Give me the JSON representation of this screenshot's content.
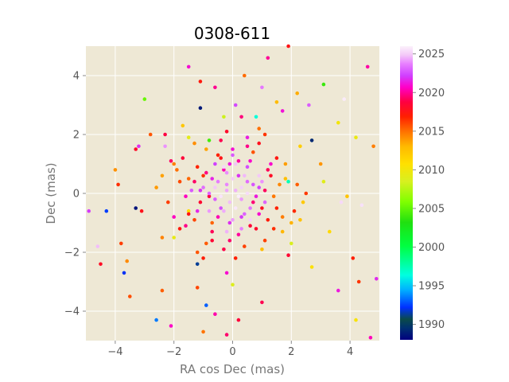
{
  "chart_data": {
    "type": "scatter",
    "title": "0308-611",
    "xlabel": "RA cos Dec (mas)",
    "ylabel": "Dec (mas)",
    "xlim": [
      -5,
      5
    ],
    "ylim": [
      -5,
      5
    ],
    "xticks": [
      -4,
      -2,
      0,
      2,
      4
    ],
    "yticks": [
      -4,
      -2,
      0,
      2,
      4
    ],
    "grid": true,
    "colorbar": {
      "label": "",
      "range": [
        1988,
        2026
      ],
      "ticks": [
        1990,
        1995,
        2000,
        2005,
        2010,
        2015,
        2020,
        2025
      ],
      "colormap": "gist_ncar"
    },
    "points": [
      [
        0.1,
        0.1,
        2024.5
      ],
      [
        -0.2,
        0.3,
        2023.8
      ],
      [
        0.3,
        -0.2,
        2024.1
      ],
      [
        -0.4,
        -0.5,
        2022.6
      ],
      [
        0.5,
        0.4,
        2023.2
      ],
      [
        0.2,
        0.6,
        2021.9
      ],
      [
        -0.6,
        0.2,
        2024.9
      ],
      [
        0.7,
        -0.3,
        2019.5
      ],
      [
        -0.3,
        0.8,
        2020.4
      ],
      [
        0.4,
        -0.7,
        2023.0
      ],
      [
        -0.8,
        -0.1,
        2018.7
      ],
      [
        0.9,
        0.2,
        2022.3
      ],
      [
        0.0,
        -0.9,
        2024.2
      ],
      [
        -0.1,
        1.0,
        2021.2
      ],
      [
        1.0,
        -0.5,
        2017.9
      ],
      [
        -1.0,
        0.6,
        2016.5
      ],
      [
        0.6,
        1.1,
        2020.8
      ],
      [
        -0.7,
        -1.0,
        2015.3
      ],
      [
        1.2,
        0.8,
        2019.1
      ],
      [
        -1.2,
        -0.6,
        2021.6
      ],
      [
        0.8,
        -1.2,
        2018.2
      ],
      [
        -0.5,
        1.3,
        2016.9
      ],
      [
        1.4,
        -0.1,
        2014.8
      ],
      [
        -1.4,
        0.1,
        2022.8
      ],
      [
        0.2,
        -1.4,
        2020.1
      ],
      [
        -0.9,
        1.5,
        2013.6
      ],
      [
        1.5,
        1.2,
        2017.4
      ],
      [
        -1.6,
        -1.1,
        2019.8
      ],
      [
        1.1,
        -1.6,
        2016.1
      ],
      [
        -1.3,
        1.7,
        2014.2
      ],
      [
        1.8,
        0.5,
        2012.7
      ],
      [
        -1.8,
        0.4,
        2015.9
      ],
      [
        0.5,
        1.9,
        2021.4
      ],
      [
        -0.3,
        -1.9,
        2018.9
      ],
      [
        1.7,
        -1.3,
        2013.1
      ],
      [
        -2.0,
        -0.8,
        2020.6
      ],
      [
        2.1,
        -0.6,
        2016.7
      ],
      [
        -2.1,
        1.1,
        2019.3
      ],
      [
        0.9,
        2.2,
        2015.0
      ],
      [
        -1.0,
        -2.2,
        2017.1
      ],
      [
        2.3,
        1.6,
        2011.8
      ],
      [
        -2.4,
        -1.5,
        2014.5
      ],
      [
        1.9,
        -2.1,
        2018.4
      ],
      [
        -1.7,
        2.3,
        2012.2
      ],
      [
        2.5,
        0.0,
        2016.3
      ],
      [
        -2.6,
        0.2,
        2013.9
      ],
      [
        0.3,
        2.6,
        2019.6
      ],
      [
        -0.2,
        -2.7,
        2020.9
      ],
      [
        2.7,
        -2.5,
        2010.6
      ],
      [
        -2.8,
        2.0,
        2015.6
      ],
      [
        3.0,
        1.0,
        2014.0
      ],
      [
        -3.1,
        -0.6,
        2017.7
      ],
      [
        1.5,
        3.1,
        2012.9
      ],
      [
        -1.2,
        -3.2,
        2016.0
      ],
      [
        3.3,
        -1.3,
        2011.2
      ],
      [
        -3.3,
        1.5,
        2018.1
      ],
      [
        2.2,
        3.4,
        2013.4
      ],
      [
        -2.4,
        -3.3,
        2015.4
      ],
      [
        3.6,
        2.4,
        2010.1
      ],
      [
        -3.6,
        -2.3,
        2014.3
      ],
      [
        1.0,
        -3.7,
        2019.0
      ],
      [
        -1.1,
        3.8,
        2017.3
      ],
      [
        3.9,
        -0.1,
        2012.4
      ],
      [
        -3.9,
        0.3,
        2016.6
      ],
      [
        0.4,
        4.0,
        2015.1
      ],
      [
        -0.6,
        -4.1,
        2020.3
      ],
      [
        4.2,
        1.9,
        2009.6
      ],
      [
        -4.3,
        -0.6,
        1992.4
      ],
      [
        2.7,
        1.8,
        1989.3
      ],
      [
        -1.1,
        2.9,
        1988.8
      ],
      [
        -3.3,
        -0.5,
        1988.6
      ],
      [
        -3.7,
        -2.7,
        1992.1
      ],
      [
        -2.6,
        -4.3,
        1993.5
      ],
      [
        -1.2,
        -2.4,
        1991.3
      ],
      [
        -0.9,
        -3.8,
        1993.0
      ],
      [
        -0.3,
        2.6,
        2008.2
      ],
      [
        3.1,
        3.7,
        2003.9
      ],
      [
        -3.0,
        3.2,
        2005.2
      ],
      [
        -1.5,
        1.9,
        2009.1
      ],
      [
        1.9,
        0.4,
        1997.3
      ],
      [
        2.0,
        -1.7,
        2008.6
      ],
      [
        -2.0,
        -1.5,
        2009.4
      ],
      [
        0.8,
        2.6,
        1996.5
      ],
      [
        -0.8,
        1.8,
        2004.2
      ],
      [
        4.2,
        -4.3,
        2010.4
      ],
      [
        3.1,
        0.4,
        2009.0
      ],
      [
        -1.5,
        -0.6,
        2011.0
      ],
      [
        0.0,
        -3.1,
        2008.8
      ],
      [
        2.4,
        -0.3,
        2012.1
      ],
      [
        -2.3,
        1.6,
        2024.0
      ],
      [
        3.7,
        -0.3,
        2025.3
      ],
      [
        -4.6,
        -1.8,
        2024.7
      ],
      [
        3.8,
        3.2,
        2025.8
      ],
      [
        4.4,
        -0.4,
        2025.5
      ],
      [
        4.9,
        -2.9,
        2021.7
      ],
      [
        -4.9,
        -0.6,
        2022.1
      ],
      [
        -4.5,
        -2.4,
        2018.0
      ],
      [
        -3.8,
        -1.7,
        2016.2
      ],
      [
        -3.5,
        -3.5,
        2015.8
      ],
      [
        4.7,
        -4.9,
        2020.5
      ],
      [
        4.6,
        4.3,
        2020.2
      ],
      [
        4.8,
        1.6,
        2014.6
      ],
      [
        4.3,
        -3.0,
        2016.4
      ],
      [
        -2.1,
        -4.5,
        2020.7
      ],
      [
        1.9,
        5.0,
        2017.6
      ],
      [
        1.2,
        4.6,
        2020.0
      ],
      [
        -1.5,
        4.3,
        2021.0
      ],
      [
        -0.2,
        -4.8,
        2019.4
      ],
      [
        0.2,
        -4.3,
        2018.6
      ],
      [
        -1.0,
        -4.7,
        2014.9
      ],
      [
        3.6,
        -3.3,
        2021.3
      ],
      [
        4.1,
        -2.2,
        2017.0
      ],
      [
        -3.2,
        1.6,
        2021.8
      ],
      [
        -2.3,
        2.0,
        2018.8
      ],
      [
        -4.0,
        0.8,
        2014.1
      ],
      [
        1.0,
        3.6,
        2023.5
      ],
      [
        0.1,
        3.0,
        2022.4
      ],
      [
        -0.6,
        3.6,
        2019.9
      ],
      [
        2.6,
        3.0,
        2022.9
      ],
      [
        1.7,
        2.8,
        2021.1
      ],
      [
        -0.4,
        -0.1,
        2025.6
      ],
      [
        0.3,
        0.2,
        2025.1
      ],
      [
        -0.1,
        -0.3,
        2024.7
      ],
      [
        0.2,
        -0.1,
        2025.9
      ],
      [
        -0.2,
        0.1,
        2024.3
      ],
      [
        0.5,
        0.0,
        2025.4
      ],
      [
        -0.5,
        0.4,
        2023.6
      ],
      [
        0.0,
        0.5,
        2025.0
      ],
      [
        0.4,
        0.6,
        2024.6
      ],
      [
        -0.6,
        -0.2,
        2022.9
      ],
      [
        0.6,
        -0.5,
        2023.4
      ],
      [
        -0.3,
        -0.6,
        2024.4
      ],
      [
        0.1,
        -0.5,
        2025.7
      ],
      [
        -0.7,
        0.5,
        2021.5
      ],
      [
        0.7,
        0.3,
        2022.7
      ],
      [
        -0.2,
        0.7,
        2023.9
      ],
      [
        0.3,
        -0.8,
        2022.0
      ],
      [
        -0.8,
        0.0,
        2023.1
      ],
      [
        0.8,
        -0.1,
        2021.3
      ],
      [
        -0.5,
        -0.8,
        2020.4
      ],
      [
        0.5,
        0.9,
        2022.5
      ],
      [
        -0.9,
        0.7,
        2019.7
      ],
      [
        0.9,
        -0.7,
        2020.9
      ],
      [
        -0.1,
        -1.0,
        2021.8
      ],
      [
        0.2,
        1.1,
        2020.1
      ],
      [
        -1.1,
        -0.3,
        2018.3
      ],
      [
        1.1,
        0.1,
        2019.2
      ],
      [
        -0.4,
        1.2,
        2017.6
      ],
      [
        0.6,
        -1.1,
        2018.5
      ],
      [
        -1.2,
        0.9,
        2016.8
      ],
      [
        1.2,
        -0.9,
        2017.2
      ],
      [
        -0.7,
        -1.3,
        2019.1
      ],
      [
        0.7,
        1.4,
        2015.7
      ],
      [
        -1.3,
        -0.9,
        2016.0
      ],
      [
        1.3,
        0.6,
        2018.0
      ],
      [
        -1.5,
        0.5,
        2015.2
      ],
      [
        1.5,
        -0.5,
        2016.9
      ],
      [
        0.0,
        1.5,
        2021.0
      ],
      [
        -0.1,
        -1.6,
        2019.4
      ],
      [
        1.6,
        0.3,
        2014.4
      ],
      [
        -1.6,
        -0.1,
        2020.6
      ],
      [
        0.9,
        1.7,
        2017.8
      ],
      [
        -0.9,
        -1.7,
        2015.5
      ],
      [
        1.7,
        -0.8,
        2014.7
      ],
      [
        -1.7,
        1.2,
        2018.6
      ],
      [
        0.4,
        -1.8,
        2016.1
      ],
      [
        -0.4,
        1.8,
        2019.0
      ],
      [
        1.8,
        1.0,
        2013.8
      ],
      [
        -1.8,
        -1.2,
        2017.3
      ],
      [
        1.0,
        -1.9,
        2012.8
      ],
      [
        -1.9,
        0.8,
        2015.0
      ],
      [
        0.1,
        1.0,
        2024.8
      ],
      [
        -1.0,
        0.2,
        2023.3
      ],
      [
        1.0,
        0.4,
        2024.0
      ],
      [
        0.3,
        -1.2,
        2023.7
      ],
      [
        -0.3,
        0.9,
        2025.2
      ],
      [
        -0.8,
        -0.6,
        2024.1
      ],
      [
        0.9,
        0.6,
        2024.9
      ],
      [
        -0.6,
        1.0,
        2022.2
      ],
      [
        0.6,
        -0.9,
        2025.1
      ],
      [
        -1.1,
        0.1,
        2021.9
      ],
      [
        1.1,
        -0.3,
        2023.0
      ],
      [
        0.0,
        1.3,
        2022.8
      ],
      [
        -0.2,
        -1.3,
        2024.5
      ],
      [
        1.3,
        1.0,
        2020.8
      ],
      [
        -1.3,
        0.4,
        2019.3
      ],
      [
        -0.7,
        -1.6,
        2018.4
      ],
      [
        0.5,
        1.6,
        2019.8
      ],
      [
        1.4,
        -1.2,
        2016.6
      ],
      [
        -1.5,
        -0.7,
        2017.5
      ],
      [
        -2.2,
        -0.3,
        2016.2
      ],
      [
        2.2,
        0.3,
        2015.4
      ],
      [
        -0.2,
        2.1,
        2018.2
      ],
      [
        0.1,
        -2.2,
        2017.0
      ],
      [
        2.0,
        -1.0,
        2013.2
      ],
      [
        -2.0,
        1.0,
        2014.6
      ],
      [
        1.1,
        2.0,
        2016.4
      ],
      [
        -1.2,
        -2.0,
        2015.6
      ],
      [
        2.3,
        -0.9,
        2012.5
      ],
      [
        -2.4,
        0.6,
        2013.7
      ]
    ]
  }
}
